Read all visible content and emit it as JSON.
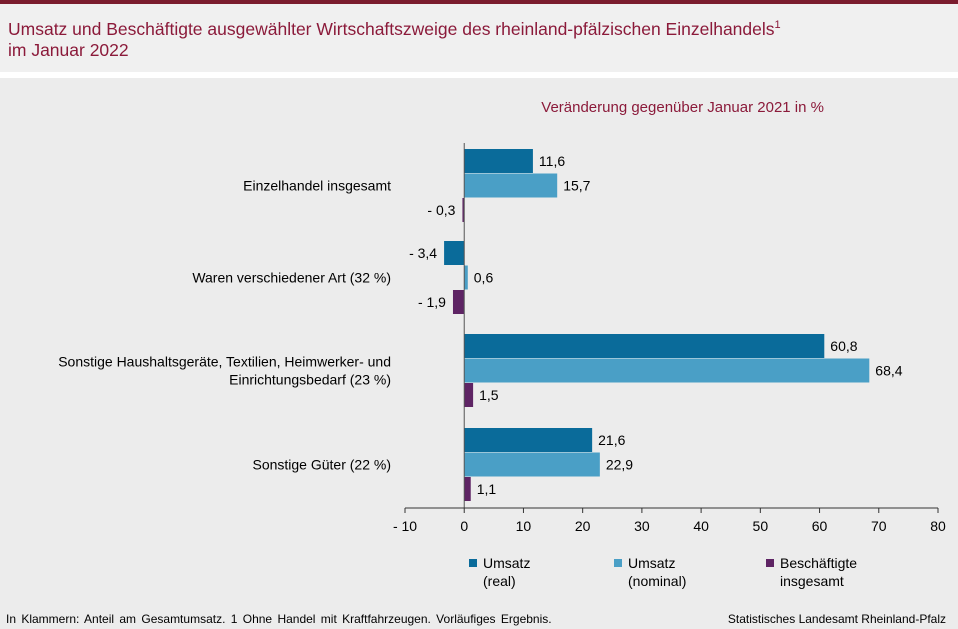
{
  "header": {
    "title_line1": "Umsatz und Beschäftigte ausgewählter Wirtschaftszweige des rheinland-pfälzischen Einzelhandels",
    "title_footnote": "1",
    "title_line2": "im Januar 2022"
  },
  "footer": {
    "note": "In Klammern: Anteil am Gesamtumsatz. 1 Ohne Handel mit Kraftfahrzeugen. Vorläufiges Ergebnis.",
    "source": "Statistisches Landesamt Rheinland-Pfalz"
  },
  "chart_data": {
    "type": "bar",
    "orientation": "horizontal",
    "subtitle": "Veränderung gegenüber Januar 2021 in %",
    "categories": [
      [
        "Einzelhandel insgesamt"
      ],
      [
        "Waren verschiedener Art (32 %)"
      ],
      [
        "Sonstige Haushaltsgeräte, Textilien, Heimwerker- und",
        "Einrichtungsbedarf (23 %)"
      ],
      [
        "Sonstige Güter (22 %)"
      ]
    ],
    "series": [
      {
        "name": "Umsatz (real)",
        "legend_lines": [
          "Umsatz",
          "(real)"
        ],
        "color": "#0a6b9a",
        "values": [
          11.6,
          -3.4,
          60.8,
          21.6
        ],
        "labels": [
          "11,6",
          "- 3,4",
          "60,8",
          "21,6"
        ]
      },
      {
        "name": "Umsatz (nominal)",
        "legend_lines": [
          "Umsatz",
          "(nominal)"
        ],
        "color": "#4a9fc6",
        "values": [
          15.7,
          0.6,
          68.4,
          22.9
        ],
        "labels": [
          "15,7",
          "0,6",
          "68,4",
          "22,9"
        ]
      },
      {
        "name": "Beschäftigte insgesamt",
        "legend_lines": [
          "Beschäftigte",
          "insgesamt"
        ],
        "color": "#5e2464",
        "values": [
          -0.3,
          -1.9,
          1.5,
          1.1
        ],
        "labels": [
          "- 0,3",
          "- 1,9",
          "1,5",
          "1,1"
        ]
      }
    ],
    "xlim": [
      -10,
      80
    ],
    "xticks": [
      -10,
      0,
      10,
      20,
      30,
      40,
      50,
      60,
      70,
      80
    ],
    "xtick_labels": [
      "- 10",
      "0",
      "10",
      "20",
      "30",
      "40",
      "50",
      "60",
      "70",
      "80"
    ],
    "legend_position": "bottom",
    "grid": false
  }
}
